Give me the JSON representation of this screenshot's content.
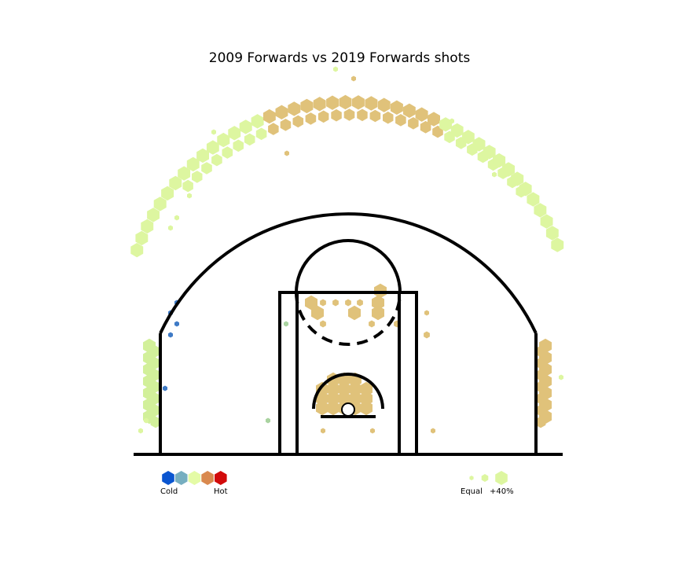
{
  "chart_data": {
    "type": "heatmap",
    "chart_kind": "hexbin shot chart on half basketball court",
    "title": "2009 Forwards vs 2019 Forwards shots",
    "axes_visible": false,
    "grid": false,
    "color_scale": {
      "low_label": "Cold",
      "high_label": "Hot",
      "colors": [
        "#0a55d0",
        "#76aec0",
        "#e4fba6",
        "#d9894e",
        "#d20a0a"
      ]
    },
    "size_scale": {
      "labels": [
        "Equal",
        "+40%"
      ]
    },
    "colors": {
      "hot_mid": "#e0c27a",
      "neutral_light": "#ddf6a0",
      "light_green": "#d2f09a",
      "cold_blue": "#3f7bc6",
      "muted_green": "#a9d3a0",
      "court_lines": "#000000"
    },
    "zones": [
      {
        "zone": "restricted area",
        "color": "hot_mid",
        "density": "high"
      },
      {
        "zone": "top of the key three",
        "color": "hot_mid",
        "density": "high"
      },
      {
        "zone": "wing threes",
        "color": "neutral_light",
        "density": "high"
      },
      {
        "zone": "right corner three",
        "color": "hot_mid",
        "density": "high"
      },
      {
        "zone": "left corner three",
        "color": "light_green",
        "density": "high"
      },
      {
        "zone": "free-throw line area",
        "color": "hot_mid",
        "density": "medium"
      },
      {
        "zone": "left midrange baseline",
        "color": "cold_blue",
        "density": "low"
      }
    ]
  }
}
